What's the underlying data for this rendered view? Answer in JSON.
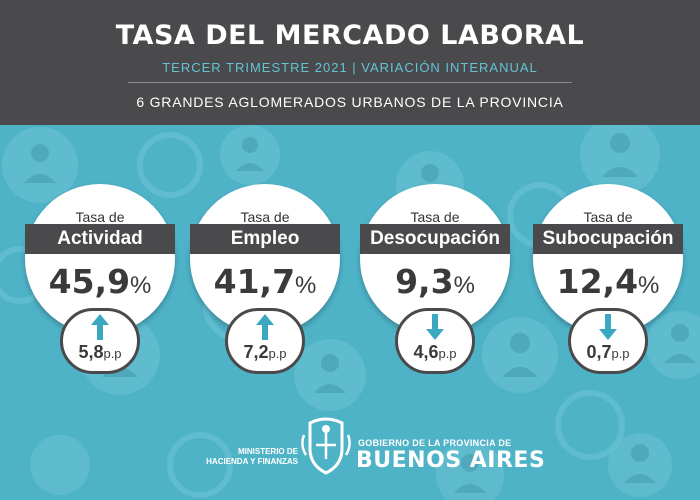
{
  "header": {
    "title": "TASA DEL MERCADO LABORAL",
    "subtitle": "TERCER TRIMESTRE 2021 | VARIACIÓN INTERANUAL",
    "scope": "6 GRANDES AGLOMERADOS URBANOS DE LA PROVINCIA"
  },
  "colors": {
    "background": "#4fb3c8",
    "header": "#4a4a4c",
    "accent": "#62c3d6",
    "arrow": "#3aa8c1"
  },
  "indicators": [
    {
      "label_prefix": "Tasa de",
      "label_main": "Actividad",
      "value": "45,9",
      "unit": "%",
      "change": "5,8",
      "change_unit": "p.p",
      "direction": "up"
    },
    {
      "label_prefix": "Tasa de",
      "label_main": "Empleo",
      "value": "41,7",
      "unit": "%",
      "change": "7,2",
      "change_unit": "p.p",
      "direction": "up"
    },
    {
      "label_prefix": "Tasa de",
      "label_main": "Desocupación",
      "value": "9,3",
      "unit": "%",
      "change": "4,6",
      "change_unit": "p.p",
      "direction": "down"
    },
    {
      "label_prefix": "Tasa de",
      "label_main": "Subocupación",
      "value": "12,4",
      "unit": "%",
      "change": "0,7",
      "change_unit": "p.p",
      "direction": "down"
    }
  ],
  "footer": {
    "ministry_line1": "MINISTERIO DE",
    "ministry_line2": "HACIENDA Y FINANZAS",
    "gov_line": "GOBIERNO DE LA PROVINCIA DE",
    "gov_name": "BUENOS AIRES",
    "seal_icon": "province-seal-icon"
  }
}
